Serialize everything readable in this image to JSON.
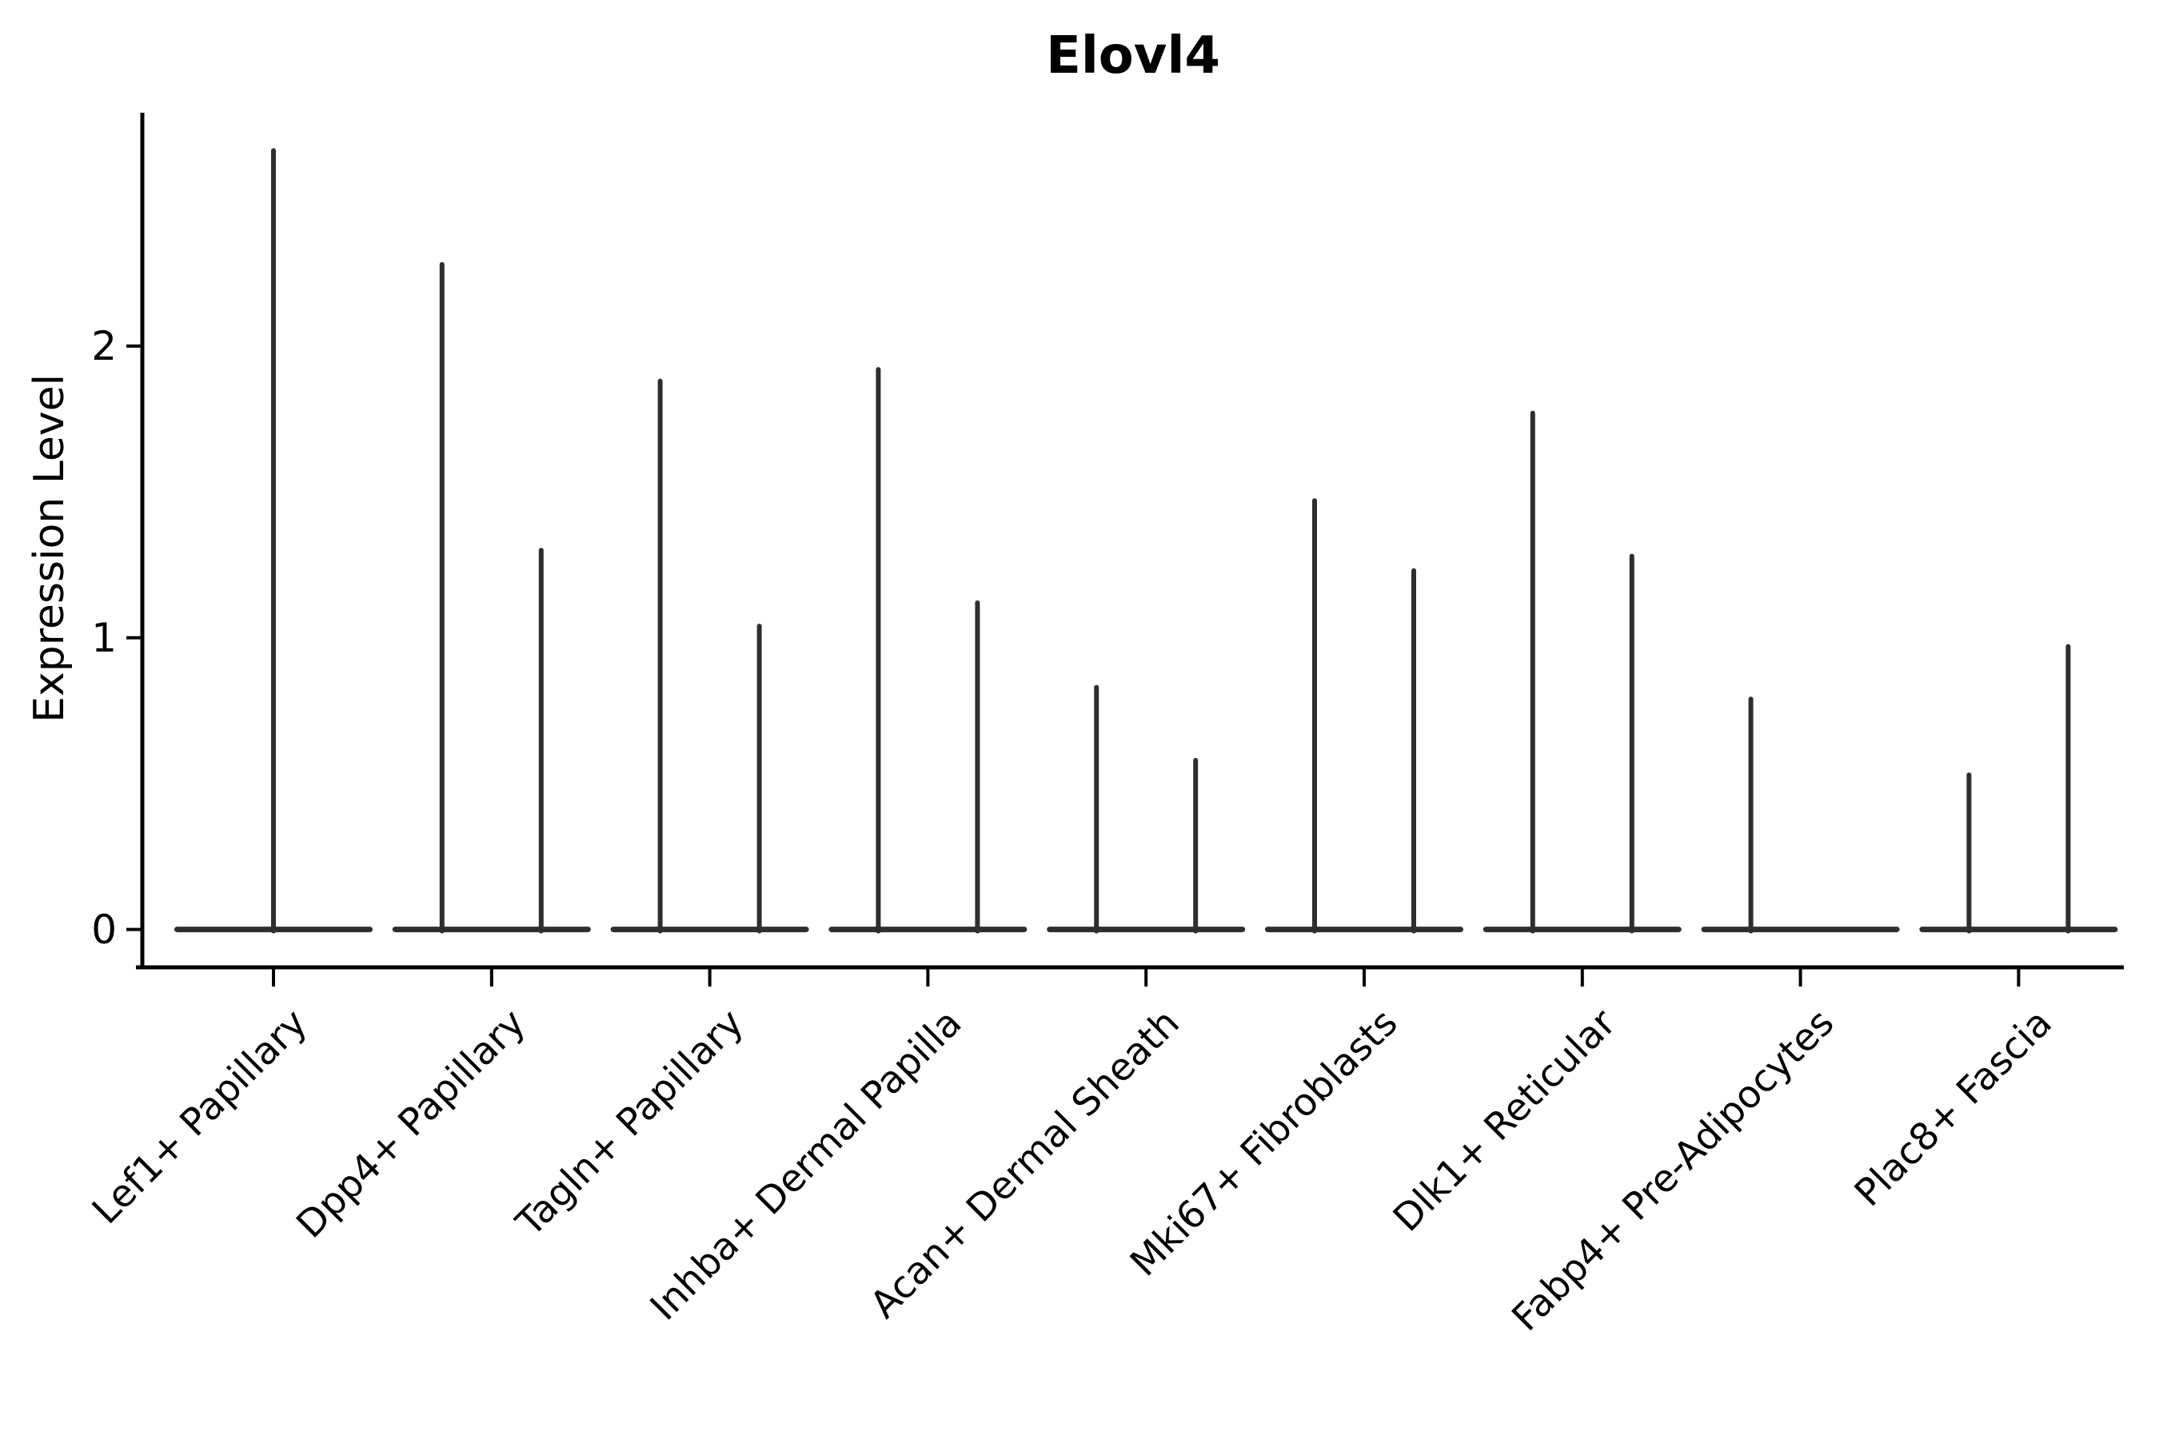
{
  "figure": {
    "title": "Elovl4"
  },
  "axes": {
    "ylabel": "Expression Level",
    "ytick_labels": [
      "0",
      "1",
      "2"
    ]
  },
  "colors": {
    "background": "#ffffff",
    "axis": "#000000",
    "text": "#000000",
    "violin": "#2e2e2e"
  },
  "chart_data": {
    "type": "violin",
    "title": "Elovl4",
    "xlabel": "",
    "ylabel": "Expression Level",
    "ylim": [
      -0.13,
      2.8
    ],
    "yticks": [
      0,
      1,
      2
    ],
    "grid": false,
    "legend": false,
    "categories": [
      "Lef1+ Papillary",
      "Dpp4+ Papillary",
      "Tagln+ Papillary",
      "Inhba+ Dermal Papilla",
      "Acan+ Dermal Sheath",
      "Mki67+ Fibroblasts",
      "Dlk1+ Reticular",
      "Fabp4+ Pre-Adipocytes",
      "Plac8+ Fascia"
    ],
    "violins": [
      {
        "category": "Lef1+ Papillary",
        "spikes": [
          {
            "position": "center",
            "max": 2.67
          }
        ]
      },
      {
        "category": "Dpp4+ Papillary",
        "spikes": [
          {
            "position": "left",
            "max": 2.28
          },
          {
            "position": "right",
            "max": 1.3
          }
        ]
      },
      {
        "category": "Tagln+ Papillary",
        "spikes": [
          {
            "position": "left",
            "max": 1.88
          },
          {
            "position": "right",
            "max": 1.04
          }
        ]
      },
      {
        "category": "Inhba+ Dermal Papilla",
        "spikes": [
          {
            "position": "left",
            "max": 1.92
          },
          {
            "position": "right",
            "max": 1.12
          }
        ]
      },
      {
        "category": "Acan+ Dermal Sheath",
        "spikes": [
          {
            "position": "left",
            "max": 0.83
          },
          {
            "position": "right",
            "max": 0.58
          }
        ]
      },
      {
        "category": "Mki67+ Fibroblasts",
        "spikes": [
          {
            "position": "left",
            "max": 1.47
          },
          {
            "position": "right",
            "max": 1.23
          }
        ]
      },
      {
        "category": "Dlk1+ Reticular",
        "spikes": [
          {
            "position": "left",
            "max": 1.77
          },
          {
            "position": "right",
            "max": 1.28
          }
        ]
      },
      {
        "category": "Fabp4+ Pre-Adipocytes",
        "spikes": [
          {
            "position": "left",
            "max": 0.79
          }
        ]
      },
      {
        "category": "Plac8+ Fascia",
        "spikes": [
          {
            "position": "left",
            "max": 0.53
          },
          {
            "position": "right",
            "max": 0.97
          }
        ]
      }
    ],
    "baseline_value": 0,
    "note_visible_structure": "Each category shows a flat violin base at expression 0 with thin spikes up to the max value listed."
  }
}
